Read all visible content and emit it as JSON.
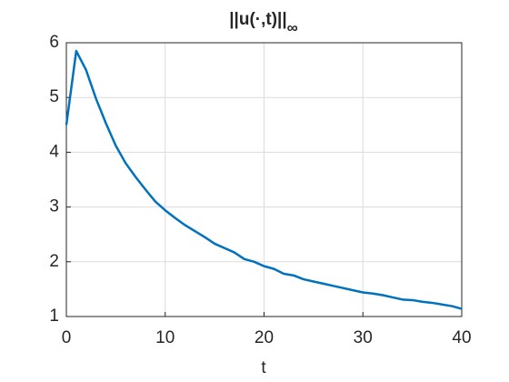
{
  "chart_data": {
    "type": "line",
    "title": "||u(·,t)||",
    "title_subscript": "∞",
    "xlabel": "t",
    "x": [
      0,
      1,
      2,
      3,
      4,
      5,
      6,
      7,
      8,
      9,
      10,
      11,
      12,
      13,
      14,
      15,
      16,
      17,
      18,
      19,
      20,
      21,
      22,
      23,
      24,
      25,
      26,
      27,
      28,
      29,
      30,
      31,
      32,
      33,
      34,
      35,
      36,
      37,
      38,
      39,
      40
    ],
    "series": [
      {
        "color": "#0072BD",
        "values": [
          4.5,
          5.85,
          5.5,
          4.98,
          4.53,
          4.12,
          3.8,
          3.55,
          3.32,
          3.1,
          2.94,
          2.8,
          2.67,
          2.56,
          2.45,
          2.33,
          2.25,
          2.17,
          2.05,
          2.0,
          1.92,
          1.87,
          1.78,
          1.75,
          1.68,
          1.64,
          1.6,
          1.56,
          1.52,
          1.48,
          1.44,
          1.42,
          1.39,
          1.35,
          1.31,
          1.3,
          1.27,
          1.25,
          1.22,
          1.19,
          1.14
        ]
      }
    ],
    "xlim": [
      0,
      40
    ],
    "xticks": [
      0,
      10,
      20,
      30,
      40
    ],
    "ylim": [
      1,
      6
    ],
    "yticks": [
      1,
      2,
      3,
      4,
      5,
      6
    ],
    "grid": true
  }
}
